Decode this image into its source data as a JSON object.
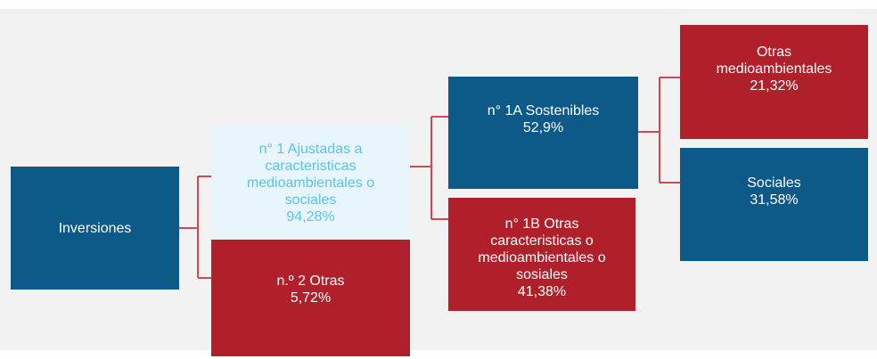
{
  "nodes": [
    {
      "lines": [
        "Inversiones"
      ]
    },
    {
      "lines": [
        "n° 1 Ajustadas a",
        "caracteristicas",
        "medioambientales o",
        "sociales",
        "94,28%"
      ]
    },
    {
      "lines": [
        "n.º 2 Otras",
        "5,72%"
      ]
    },
    {
      "lines": [
        "n° 1A Sostenibles",
        "52,9%"
      ]
    },
    {
      "lines": [
        "n° 1B Otras",
        "caracteristicas o",
        "medioambientales o",
        "sosiales",
        "41,38%"
      ]
    },
    {
      "lines": [
        "Otras",
        "medioambientales",
        "21,32%"
      ]
    },
    {
      "lines": [
        "Sociales",
        "31,58%"
      ]
    }
  ]
}
